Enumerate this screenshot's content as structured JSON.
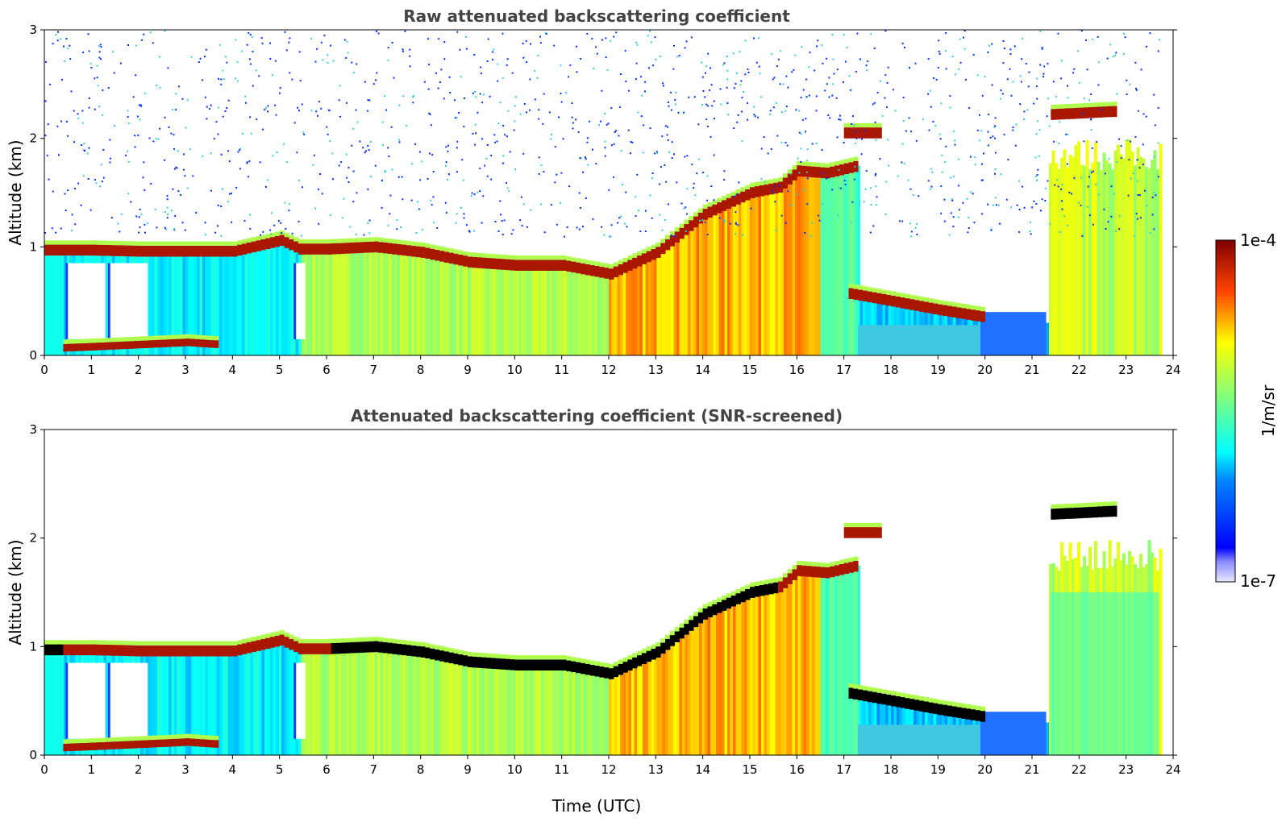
{
  "chart_data": [
    {
      "type": "heatmap",
      "title": "Raw attenuated backscattering coefficient",
      "xlabel": "",
      "ylabel": "Altitude (km)",
      "xlim": [
        0,
        24
      ],
      "ylim": [
        0,
        3
      ],
      "xticks": [
        "0",
        "1",
        "2",
        "3",
        "4",
        "5",
        "6",
        "7",
        "8",
        "9",
        "10",
        "11",
        "12",
        "13",
        "14",
        "15",
        "16",
        "17",
        "18",
        "19",
        "20",
        "21",
        "22",
        "23",
        "24"
      ],
      "yticks": [
        "0",
        "1",
        "2",
        "3"
      ],
      "screened": false,
      "layers": [
        {
          "name": "cloud base layer",
          "time": [
            0,
            0.5,
            1,
            2,
            3,
            4,
            5,
            5.4,
            6,
            7,
            8,
            9,
            10,
            11,
            12,
            13,
            14,
            15,
            15.6,
            16,
            16.6,
            17.3
          ],
          "altitude_km": [
            0.97,
            0.97,
            0.97,
            0.96,
            0.96,
            0.96,
            1.06,
            0.98,
            0.98,
            1.0,
            0.95,
            0.86,
            0.83,
            0.83,
            0.75,
            0.95,
            1.3,
            1.5,
            1.55,
            1.7,
            1.68,
            1.75
          ]
        },
        {
          "name": "near-surface aerosol layer",
          "time": [
            0.4,
            1,
            2,
            3,
            3.7
          ],
          "altitude_km": [
            0.07,
            0.08,
            0.1,
            0.12,
            0.1
          ]
        },
        {
          "name": "elevated layer evening",
          "time": [
            17.1,
            18,
            19,
            20
          ],
          "altitude_km": [
            0.57,
            0.5,
            0.42,
            0.35
          ]
        },
        {
          "name": "upper cloud 17h",
          "time": [
            17.0,
            17.8
          ],
          "altitude_km": [
            2.05,
            2.05
          ]
        },
        {
          "name": "upper cloud 22h",
          "time": [
            21.4,
            22.8
          ],
          "altitude_km": [
            2.22,
            2.25
          ]
        }
      ]
    },
    {
      "type": "heatmap",
      "title": "Attenuated backscattering coefficient (SNR-screened)",
      "xlabel": "Time (UTC)",
      "ylabel": "Altitude (km)",
      "xlim": [
        0,
        24
      ],
      "ylim": [
        0,
        3
      ],
      "xticks": [
        "0",
        "1",
        "2",
        "3",
        "4",
        "5",
        "6",
        "7",
        "8",
        "9",
        "10",
        "11",
        "12",
        "13",
        "14",
        "15",
        "16",
        "17",
        "18",
        "19",
        "20",
        "21",
        "22",
        "23",
        "24"
      ],
      "yticks": [
        "0",
        "1",
        "2",
        "3"
      ],
      "screened": true
    }
  ],
  "colorbar": {
    "min_label": "1e-7",
    "max_label": "1e-4",
    "label": "1/m/sr",
    "colormap": "jet"
  },
  "colors": {
    "axis": "#000000",
    "title": "#444444",
    "saturated": "#000000"
  }
}
